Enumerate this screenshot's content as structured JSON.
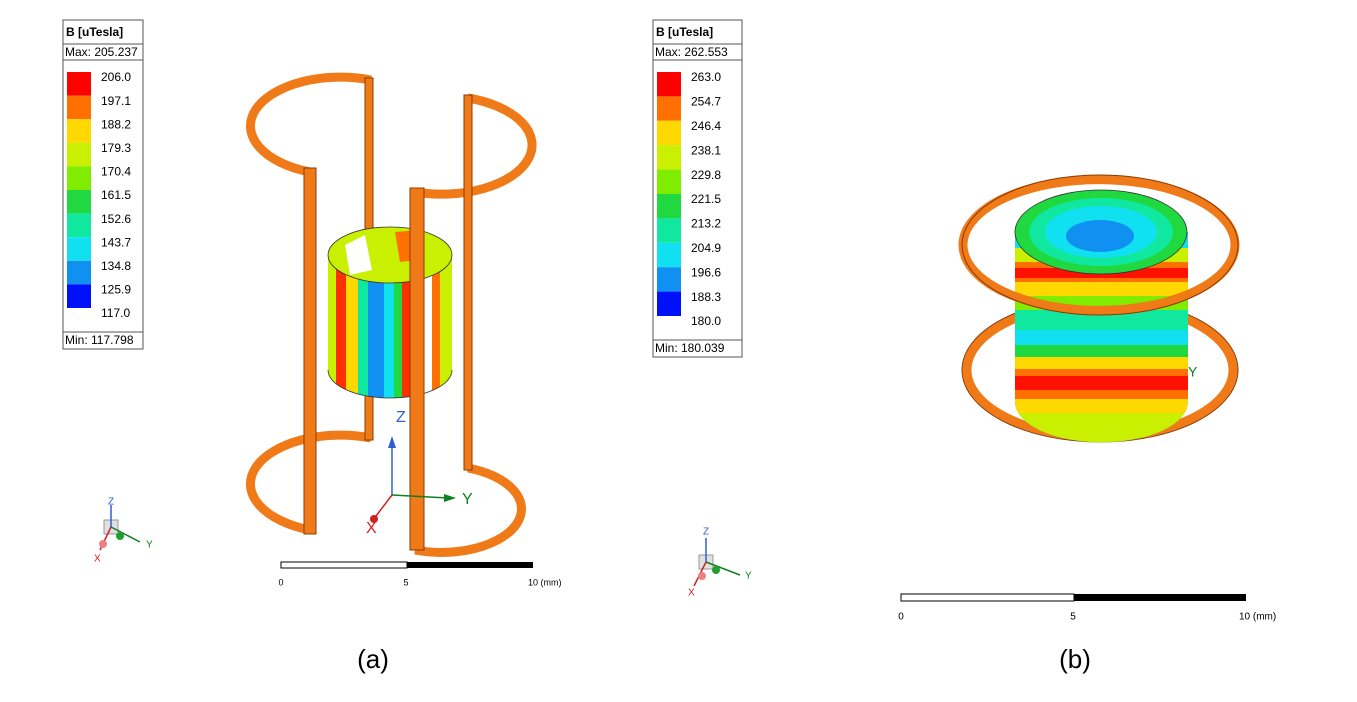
{
  "panels": [
    {
      "legend": {
        "title": "B [uTesla]",
        "max": "Max: 205.237",
        "labels": [
          "206.0",
          "197.1",
          "188.2",
          "179.3",
          "170.4",
          "161.5",
          "152.6",
          "143.7",
          "134.8",
          "125.9",
          "117.0"
        ],
        "colors": [
          "#ff0000",
          "#ff7000",
          "#ffd800",
          "#c8f000",
          "#80ec00",
          "#20d840",
          "#10e8a0",
          "#10e0f0",
          "#1090f0",
          "#0010f8"
        ],
        "min": "Min: 117.798"
      },
      "triad_small": {
        "z": "Z",
        "y": "Y",
        "x": "X"
      },
      "triad_large": {
        "z": "Z",
        "y": "Y",
        "x": "X"
      },
      "scale_bar": {
        "labels": [
          "0",
          "5",
          "10 (mm)"
        ]
      },
      "caption": "(a)"
    },
    {
      "legend": {
        "title": "B [uTesla]",
        "max": "Max: 262.553",
        "labels": [
          "263.0",
          "254.7",
          "246.4",
          "238.1",
          "229.8",
          "221.5",
          "213.2",
          "204.9",
          "196.6",
          "188.3",
          "180.0"
        ],
        "colors": [
          "#ff0000",
          "#ff7000",
          "#ffd800",
          "#c8f000",
          "#80ec00",
          "#20d840",
          "#10e8a0",
          "#10e0f0",
          "#1090f0",
          "#0010f8"
        ],
        "min": "Min: 180.039"
      },
      "triad_small": {
        "z": "Z",
        "y": "Y",
        "x": "X"
      },
      "model_label": "Y",
      "scale_bar": {
        "labels": [
          "0",
          "5",
          "10 (mm)"
        ]
      },
      "caption": "(b)"
    }
  ]
}
